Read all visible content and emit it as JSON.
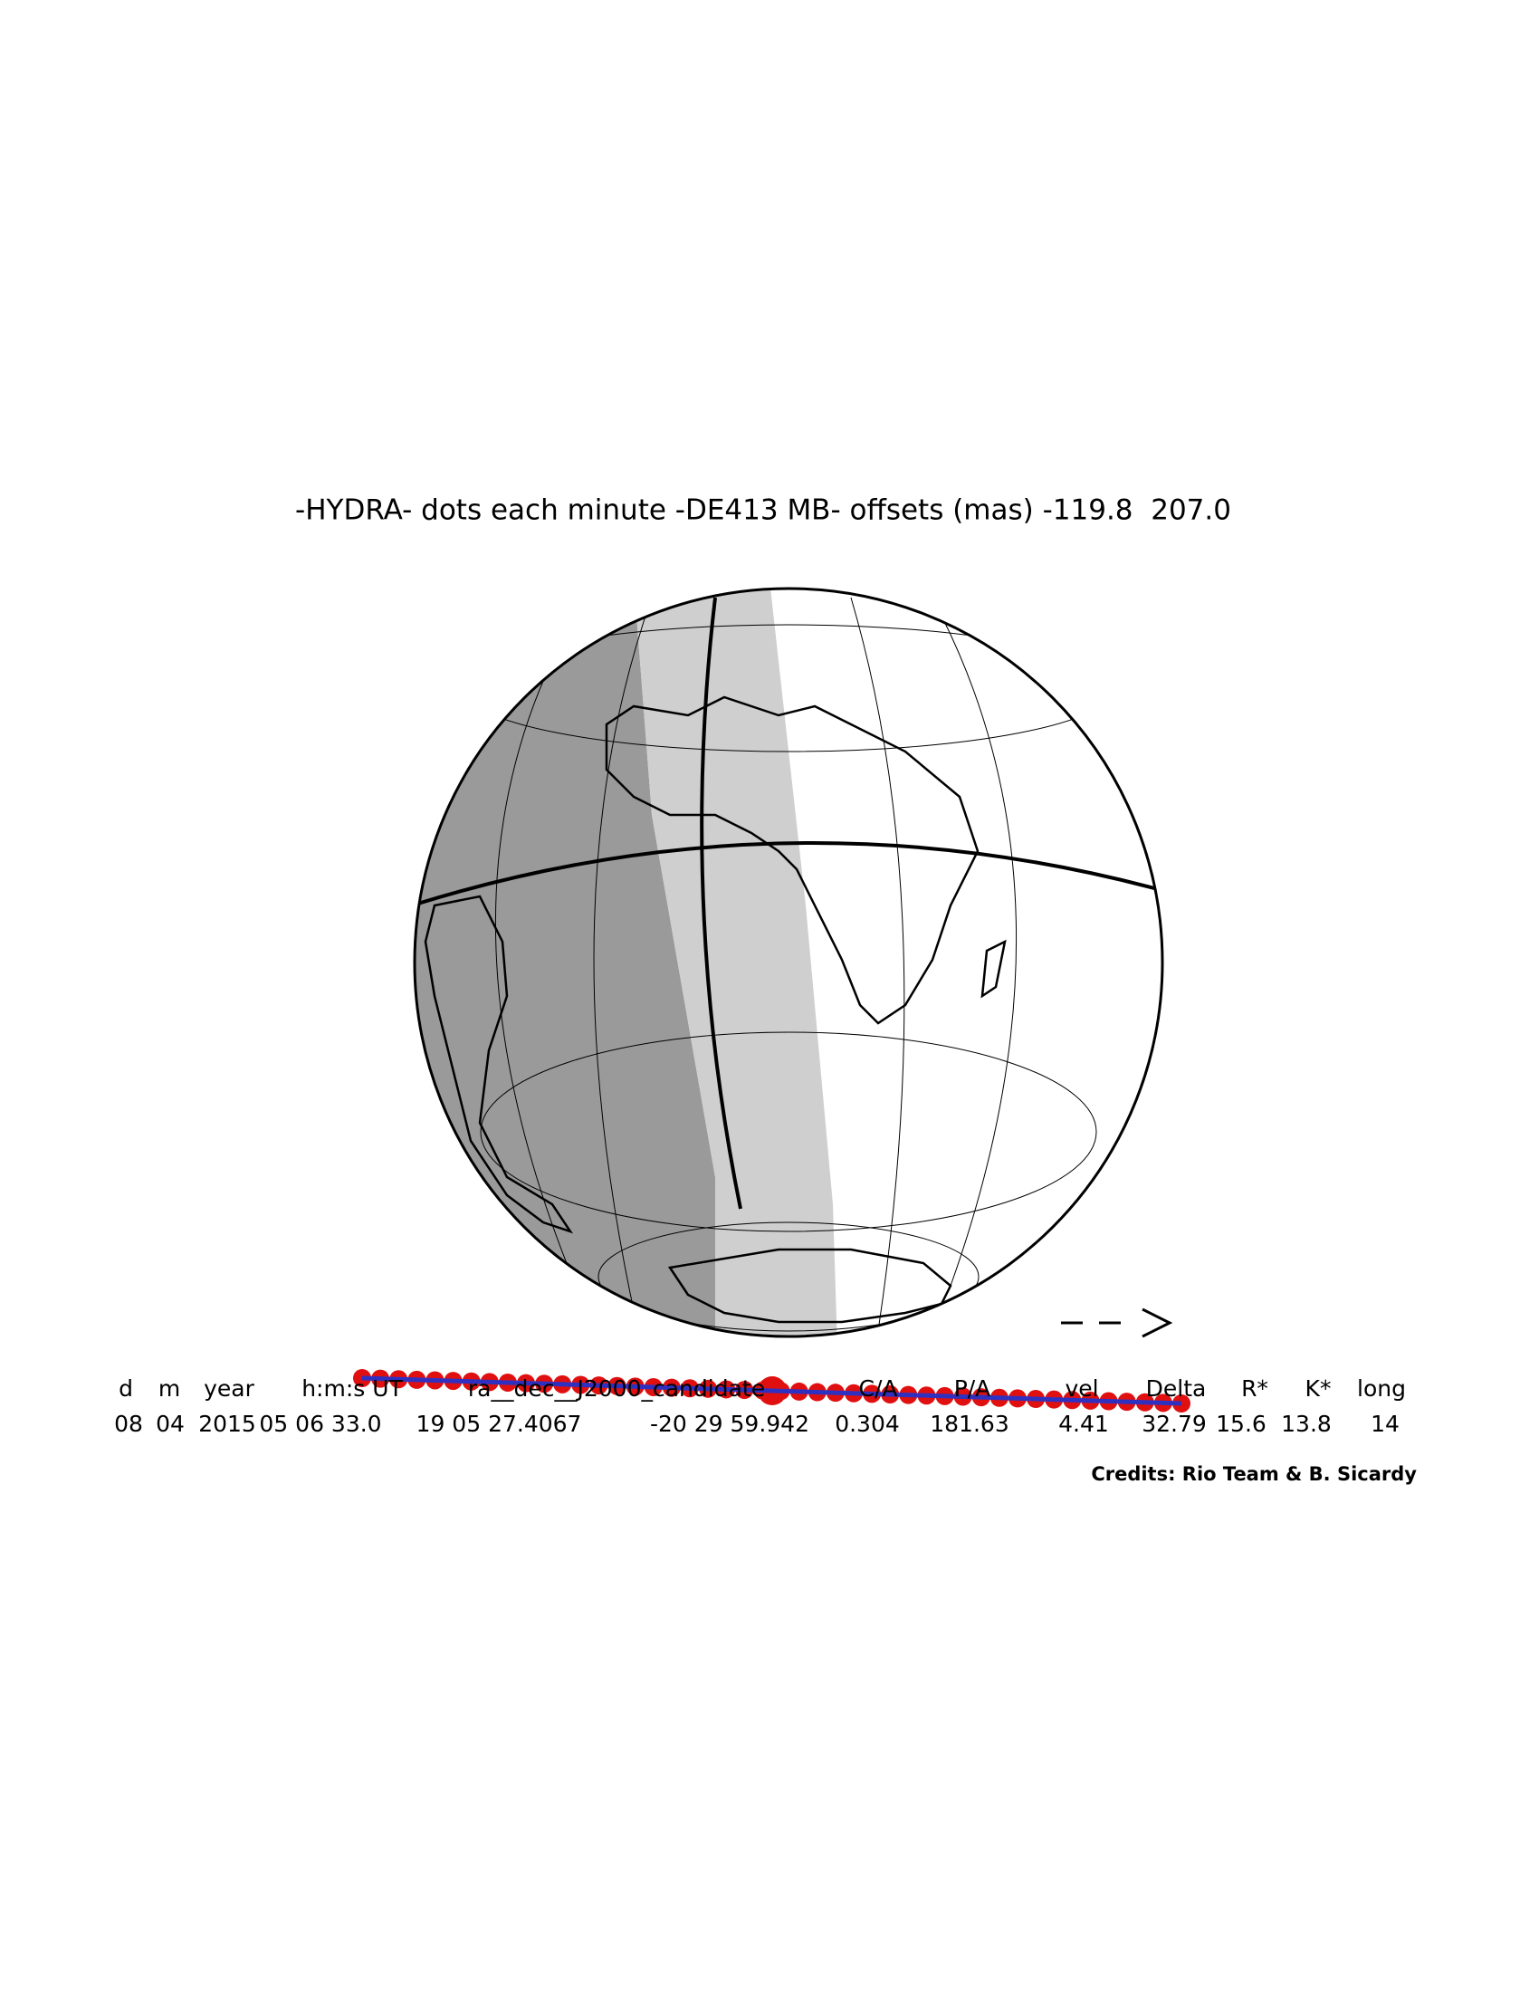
{
  "title": "-HYDRA- dots each minute -DE413 MB- offsets (mas) -119.8  207.0",
  "table": {
    "headers": [
      "d",
      "m",
      "year",
      "h:m:s UT",
      "ra__dec__J2000_candidate",
      "C/A",
      "P/A",
      "vel",
      "Delta",
      "R*",
      "K*",
      "long"
    ],
    "values": [
      "08",
      "04",
      "2015",
      "05 06 33.0",
      "19 05 27.4067",
      "-20 29 59.942",
      "0.304",
      "181.63",
      "4.41",
      "32.79",
      "15.6",
      "13.8",
      "14"
    ]
  },
  "credits": "Credits: Rio Team & B. Sicardy"
}
